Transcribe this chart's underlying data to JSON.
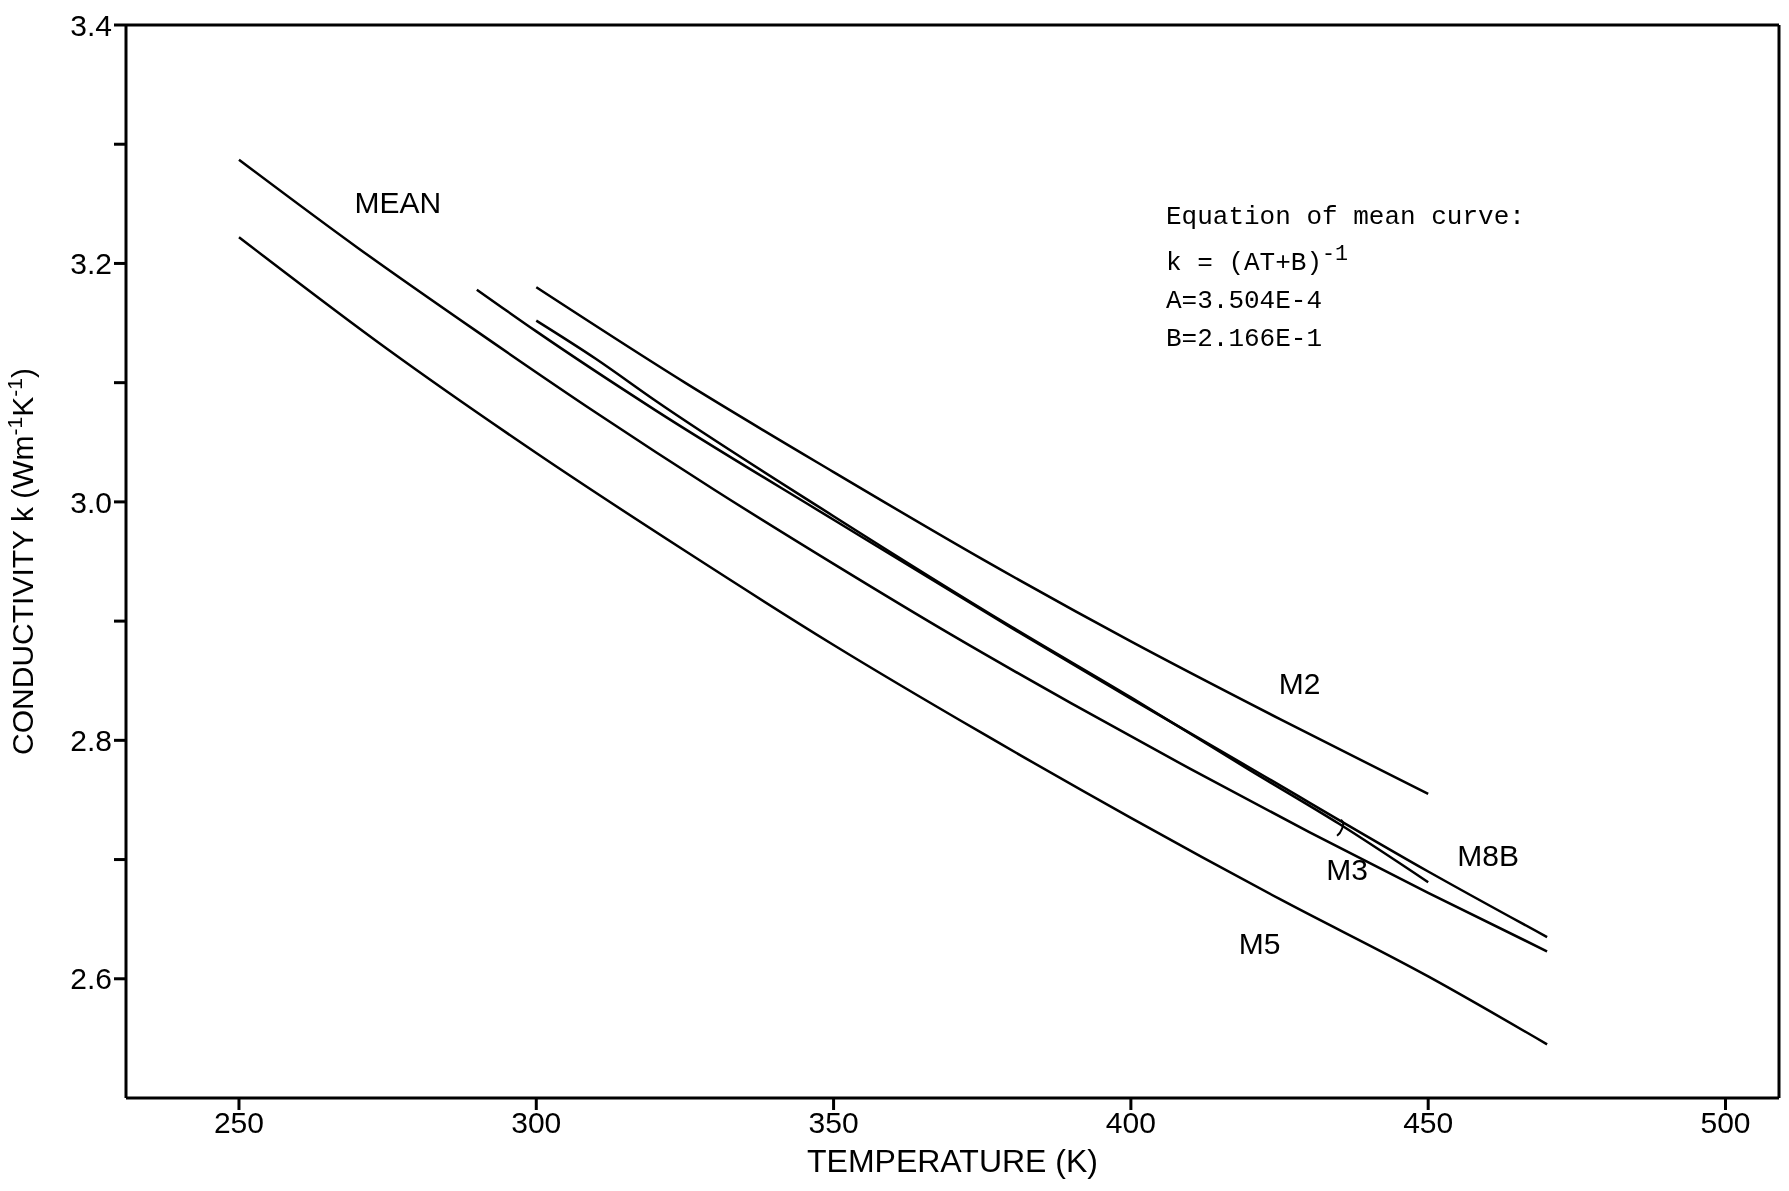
{
  "chart_data": {
    "type": "line",
    "xlabel": "TEMPERATURE  (K)",
    "ylabel": "CONDUCTIVITY  k  (Wm$^{-1}$K$^{-1}$)",
    "xlim": [
      231,
      509
    ],
    "xticks": [
      250,
      300,
      350,
      400,
      450,
      500
    ],
    "ylim": [
      2.5,
      3.4
    ],
    "yticks": [
      2.6,
      {
        "value": 2.7,
        "label": null
      },
      2.8,
      {
        "value": 2.9,
        "label": null
      },
      {
        "value": 3.0,
        "label": "3.0"
      },
      {
        "value": 3.1,
        "label": null
      },
      3.2,
      {
        "value": 3.3,
        "label": null
      },
      3.4
    ],
    "grid": false,
    "legend": false,
    "marker": "none",
    "line_style": "solid",
    "series": [
      {
        "name": "MEAN",
        "color": "#000000",
        "x": [
          250,
          270,
          290,
          310,
          330,
          350,
          370,
          390,
          410,
          430,
          450,
          470
        ],
        "values": [
          3.287,
          3.213,
          3.143,
          3.075,
          3.01,
          2.948,
          2.888,
          2.831,
          2.776,
          2.723,
          2.672,
          2.623
        ]
      },
      {
        "name": "M2",
        "color": "#000000",
        "x": [
          300,
          325,
          350,
          375,
          400,
          425,
          450
        ],
        "values": [
          3.18,
          3.1,
          3.025,
          2.952,
          2.883,
          2.818,
          2.755
        ]
      },
      {
        "name": "M8B",
        "color": "#000000",
        "x": [
          290,
          300,
          320,
          350,
          380,
          400,
          420,
          450,
          470
        ],
        "values": [
          3.178,
          3.143,
          3.077,
          2.985,
          2.894,
          2.835,
          2.777,
          2.69,
          2.635
        ]
      },
      {
        "name": "M3",
        "color": "#000000",
        "x": [
          300,
          310,
          320,
          350,
          380,
          400,
          420,
          435,
          450
        ],
        "values": [
          3.152,
          3.12,
          3.085,
          2.988,
          2.895,
          2.836,
          2.775,
          2.73,
          2.681
        ]
      },
      {
        "name": "M5",
        "color": "#000000",
        "x": [
          250,
          275,
          300,
          325,
          350,
          375,
          400,
          425,
          450,
          470
        ],
        "values": [
          3.222,
          3.128,
          3.041,
          2.959,
          2.88,
          2.806,
          2.735,
          2.667,
          2.602,
          2.545
        ]
      }
    ],
    "annotations": [
      "Equation of mean curve:",
      "k = (AT+B)$^{-1}$",
      "A=3.504E-4",
      "B=2.166E-1"
    ]
  }
}
